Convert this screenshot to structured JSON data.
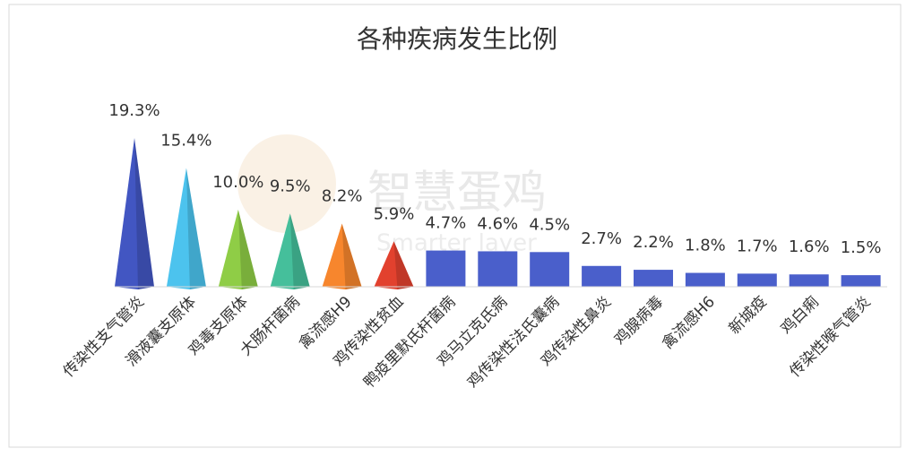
{
  "chart_data": {
    "type": "bar",
    "title": "各种疾病发生比例",
    "watermark": [
      "智慧蛋鸡",
      "Smarter layer"
    ],
    "categories": [
      "传染性支气管炎",
      "滑液囊支原体",
      "鸡毒支原体",
      "大肠杆菌病",
      "禽流感H9",
      "鸡传染性贫血",
      "鸭疫里默氏杆菌病",
      "鸡马立克氏病",
      "鸡传染性法氏囊病",
      "鸡传染性鼻炎",
      "鸡腺病毒",
      "禽流感H6",
      "新城疫",
      "鸡白痢",
      "传染性喉气管炎"
    ],
    "values": [
      19.3,
      15.4,
      10.0,
      9.5,
      8.2,
      5.9,
      4.7,
      4.6,
      4.5,
      2.7,
      2.2,
      1.8,
      1.7,
      1.6,
      1.5
    ],
    "value_labels": [
      "19.3%",
      "15.4%",
      "10.0%",
      "9.5%",
      "8.2%",
      "5.9%",
      "4.7%",
      "4.6%",
      "4.5%",
      "2.7%",
      "2.2%",
      "1.8%",
      "1.7%",
      "1.6%",
      "1.5%"
    ],
    "colors": [
      "#4256c2",
      "#4cc3ee",
      "#8fcd46",
      "#45bf9b",
      "#f7862d",
      "#e2412e",
      "#4a5fcb",
      "#4a5fcb",
      "#4a5fcb",
      "#4a5fcb",
      "#4a5fcb",
      "#4a5fcb",
      "#4a5fcb",
      "#4a5fcb",
      "#4a5fcb"
    ],
    "bar_shapes": [
      "pyramid",
      "pyramid",
      "pyramid",
      "pyramid",
      "pyramid",
      "pyramid",
      "rect",
      "rect",
      "rect",
      "rect",
      "rect",
      "rect",
      "rect",
      "rect",
      "rect"
    ]
  }
}
